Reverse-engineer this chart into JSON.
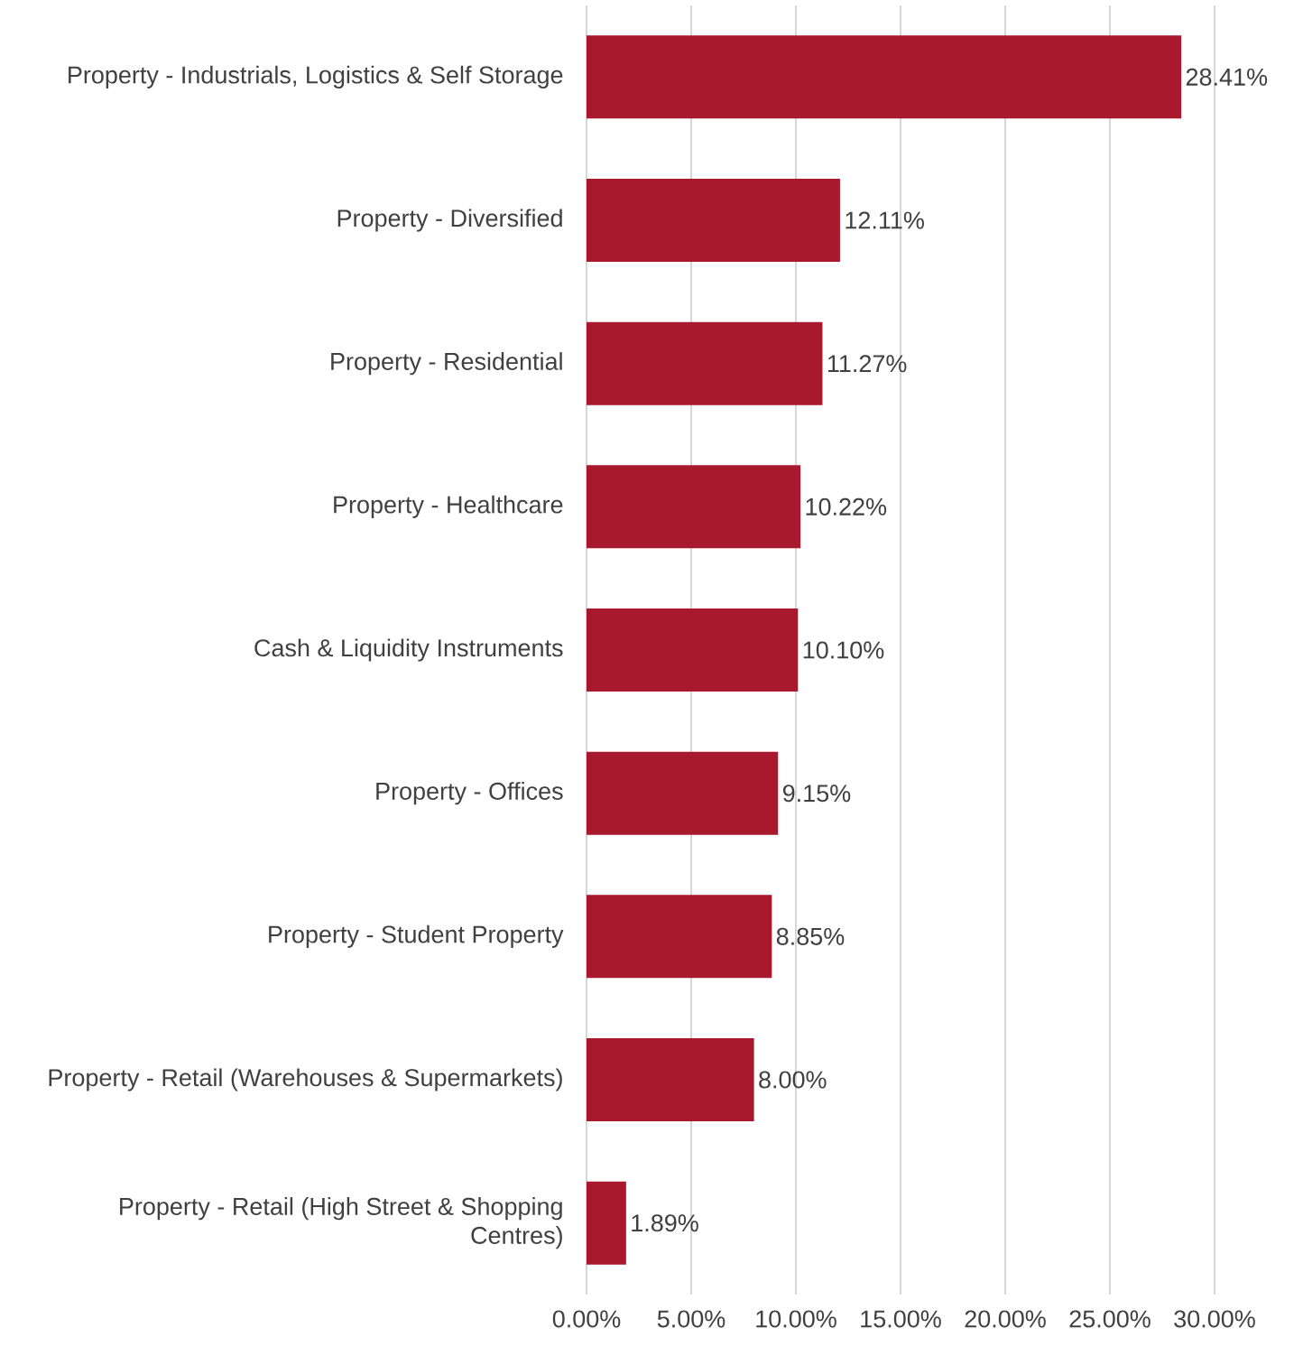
{
  "chart_data": {
    "type": "bar",
    "orientation": "horizontal",
    "categories": [
      "Property - Industrials, Logistics & Self Storage",
      "Property - Diversified",
      "Property - Residential",
      "Property - Healthcare",
      "Cash & Liquidity Instruments",
      "Property - Offices",
      "Property - Student Property",
      "Property - Retail (Warehouses & Supermarkets)",
      "Property - Retail (High Street & Shopping Centres)"
    ],
    "values": [
      28.41,
      12.11,
      11.27,
      10.22,
      10.1,
      9.15,
      8.85,
      8.0,
      1.89
    ],
    "value_labels": [
      "28.41%",
      "12.11%",
      "11.27%",
      "10.22%",
      "10.10%",
      "9.15%",
      "8.85%",
      "8.00%",
      "1.89%"
    ],
    "color": "#a8192e",
    "xlim": [
      0,
      30
    ],
    "xticks": [
      {
        "value": 0,
        "label": "0.00%"
      },
      {
        "value": 5,
        "label": "5.00%"
      },
      {
        "value": 10,
        "label": "10.00%"
      },
      {
        "value": 15,
        "label": "15.00%"
      },
      {
        "value": 20,
        "label": "20.00%"
      },
      {
        "value": 25,
        "label": "25.00%"
      },
      {
        "value": 30,
        "label": "30.00%"
      }
    ],
    "grid": "x"
  }
}
